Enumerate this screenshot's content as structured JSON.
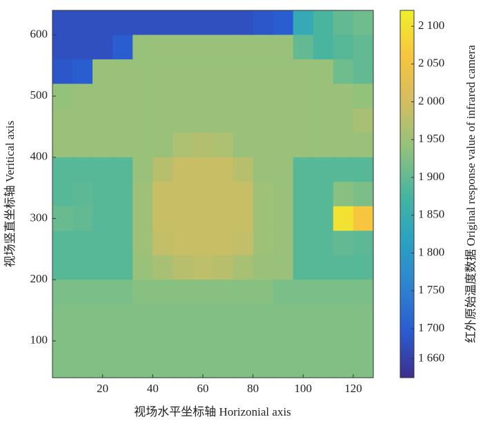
{
  "chart_data": {
    "type": "heatmap",
    "x_label": "视场水平坐标轴 Horizonial axis",
    "y_label": "视场竖直坐标轴 Veritical axis",
    "colorbar_label": "红外原始温度数据 Original response value of infrared camera",
    "xlim": [
      0,
      128
    ],
    "ylim": [
      40,
      640
    ],
    "xticks": [
      20,
      40,
      60,
      80,
      100,
      120
    ],
    "yticks": [
      100,
      200,
      300,
      400,
      500,
      600
    ],
    "clim": [
      1635,
      2121
    ],
    "cticks": [
      {
        "value": 1660,
        "label": "1 660"
      },
      {
        "value": 1700,
        "label": "1 700"
      },
      {
        "value": 1750,
        "label": "1 750"
      },
      {
        "value": 1800,
        "label": "1 800"
      },
      {
        "value": 1850,
        "label": "1 850"
      },
      {
        "value": 1900,
        "label": "1 900"
      },
      {
        "value": 1950,
        "label": "1 950"
      },
      {
        "value": 2000,
        "label": "2 000"
      },
      {
        "value": 2050,
        "label": "2 050"
      },
      {
        "value": 2100,
        "label": "2 100"
      }
    ],
    "colormap": [
      "#3e2f8c",
      "#2a5bd0",
      "#2d84d0",
      "#2aa2c2",
      "#48b59f",
      "#92c27c",
      "#d2bd62",
      "#f7c53e",
      "#eef02a"
    ],
    "z": [
      [
        1680,
        1680,
        1680,
        1680,
        1680,
        1680,
        1680,
        1680,
        1680,
        1680,
        1690,
        1700,
        1840,
        1880,
        1900,
        1910
      ],
      [
        1680,
        1680,
        1680,
        1700,
        1945,
        1945,
        1945,
        1945,
        1945,
        1945,
        1945,
        1945,
        1900,
        1880,
        1890,
        1900
      ],
      [
        1690,
        1700,
        1945,
        1945,
        1945,
        1945,
        1945,
        1945,
        1945,
        1945,
        1945,
        1945,
        1945,
        1945,
        1910,
        1900
      ],
      [
        1940,
        1945,
        1945,
        1945,
        1945,
        1945,
        1945,
        1945,
        1945,
        1945,
        1945,
        1945,
        1945,
        1945,
        1945,
        1940
      ],
      [
        1945,
        1945,
        1945,
        1945,
        1945,
        1945,
        1945,
        1945,
        1945,
        1945,
        1945,
        1945,
        1945,
        1945,
        1945,
        1960
      ],
      [
        1945,
        1945,
        1945,
        1945,
        1945,
        1945,
        1965,
        1970,
        1965,
        1945,
        1945,
        1945,
        1945,
        1945,
        1945,
        1945
      ],
      [
        1890,
        1890,
        1890,
        1890,
        1945,
        1975,
        1990,
        1990,
        1990,
        1975,
        1945,
        1945,
        1890,
        1890,
        1890,
        1890
      ],
      [
        1890,
        1895,
        1890,
        1890,
        1950,
        1990,
        1990,
        1990,
        1990,
        1990,
        1950,
        1945,
        1890,
        1890,
        1930,
        1920
      ],
      [
        1905,
        1900,
        1890,
        1890,
        1950,
        1990,
        1990,
        1990,
        1990,
        1990,
        1950,
        1945,
        1890,
        1890,
        2100,
        2060
      ],
      [
        1890,
        1890,
        1890,
        1890,
        1950,
        1985,
        1990,
        1990,
        1990,
        1985,
        1950,
        1945,
        1890,
        1890,
        1900,
        1895
      ],
      [
        1890,
        1890,
        1890,
        1890,
        1945,
        1960,
        1975,
        1980,
        1975,
        1960,
        1945,
        1945,
        1890,
        1890,
        1890,
        1890
      ],
      [
        1920,
        1920,
        1920,
        1920,
        1930,
        1930,
        1930,
        1930,
        1930,
        1930,
        1930,
        1920,
        1920,
        1920,
        1920,
        1920
      ],
      [
        1925,
        1925,
        1925,
        1925,
        1925,
        1925,
        1925,
        1925,
        1925,
        1925,
        1925,
        1925,
        1925,
        1925,
        1925,
        1925
      ],
      [
        1925,
        1925,
        1925,
        1925,
        1925,
        1925,
        1925,
        1925,
        1925,
        1925,
        1925,
        1925,
        1925,
        1925,
        1925,
        1925
      ],
      [
        1925,
        1925,
        1925,
        1925,
        1925,
        1925,
        1925,
        1925,
        1925,
        1925,
        1925,
        1925,
        1925,
        1925,
        1925,
        1925
      ]
    ]
  }
}
